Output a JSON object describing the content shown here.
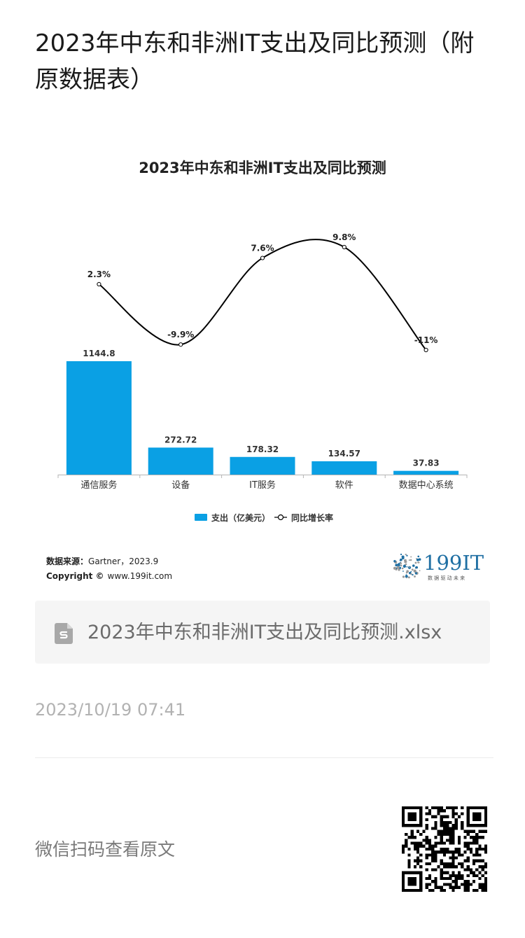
{
  "article": {
    "title": "2023年中东和非洲IT支出及同比预测（附原数据表）",
    "timestamp": "2023/10/19 07:41",
    "qr_hint": "微信扫码查看原文"
  },
  "attachment": {
    "file_name": "2023年中东和非洲IT支出及同比预测.xlsx",
    "icon": "spreadsheet-file-icon"
  },
  "figure": {
    "source_label": "数据来源：",
    "source_value": "Gartner，2023.9",
    "copyright_label": "Copyright ©",
    "copyright_value": "www.199it.com",
    "brand": {
      "name": "199IT",
      "tagline": "数 据 驱 动 未 来",
      "color": "#1f6fa3"
    }
  },
  "chart_data": {
    "type": "bar",
    "title": "2023年中东和非洲IT支出及同比预测",
    "categories": [
      "通信服务",
      "设备",
      "IT服务",
      "软件",
      "数据中心系统"
    ],
    "series": [
      {
        "name": "支出（亿美元）",
        "type": "bar",
        "values": [
          1144.8,
          272.72,
          178.32,
          134.57,
          37.83
        ],
        "value_labels": [
          "1144.8",
          "272.72",
          "178.32",
          "134.57",
          "37.83"
        ],
        "color": "#0aa0e4"
      },
      {
        "name": "同比增长率",
        "type": "line",
        "values": [
          2.3,
          -9.9,
          7.6,
          9.8,
          -11
        ],
        "value_labels": [
          "2.3%",
          "-9.9%",
          "7.6%",
          "9.8%",
          "-11%"
        ],
        "color": "#000000",
        "smooth": true
      }
    ],
    "legend_position": "bottom",
    "grid": false
  }
}
